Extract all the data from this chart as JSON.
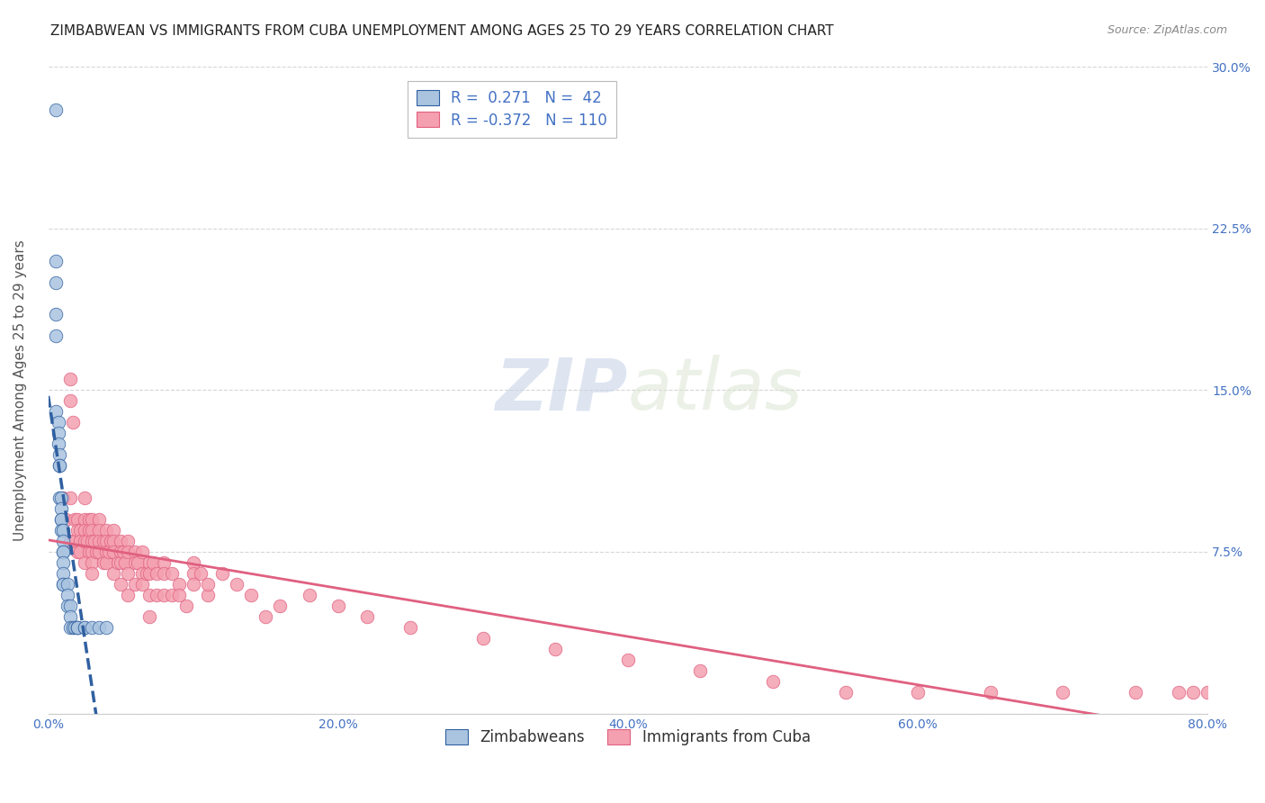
{
  "title": "ZIMBABWEAN VS IMMIGRANTS FROM CUBA UNEMPLOYMENT AMONG AGES 25 TO 29 YEARS CORRELATION CHART",
  "source": "Source: ZipAtlas.com",
  "ylabel": "Unemployment Among Ages 25 to 29 years",
  "xlim": [
    0.0,
    0.8
  ],
  "ylim": [
    0.0,
    0.3
  ],
  "yticks": [
    0.0,
    0.075,
    0.15,
    0.225,
    0.3
  ],
  "ytick_labels": [
    "",
    "7.5%",
    "15.0%",
    "22.5%",
    "30.0%"
  ],
  "xticks": [
    0.0,
    0.2,
    0.4,
    0.6,
    0.8
  ],
  "xtick_labels": [
    "0.0%",
    "20.0%",
    "40.0%",
    "60.0%",
    "80.0%"
  ],
  "background_color": "#ffffff",
  "grid_color": "#cccccc",
  "zimbabwe_color": "#aac4e0",
  "cuba_color": "#f4a0b0",
  "zimbabwe_trend_color": "#3060a0",
  "cuba_trend_color": "#e06080",
  "legend_label_zim": "Zimbabweans",
  "legend_label_cuba": "Immigrants from Cuba",
  "R_zim": 0.271,
  "N_zim": 42,
  "R_cuba": -0.372,
  "N_cuba": 110,
  "tick_color": "#4472c4",
  "axis_label_color": "#555555",
  "watermark_color": "#d0d8e8",
  "title_fontsize": 11,
  "source_fontsize": 9,
  "ylabel_fontsize": 11,
  "tick_fontsize": 10,
  "legend_fontsize": 12,
  "zim_scatter_x": [
    0.005,
    0.005,
    0.005,
    0.005,
    0.005,
    0.005,
    0.007,
    0.007,
    0.007,
    0.008,
    0.008,
    0.008,
    0.008,
    0.009,
    0.009,
    0.009,
    0.009,
    0.009,
    0.01,
    0.01,
    0.01,
    0.01,
    0.01,
    0.01,
    0.01,
    0.01,
    0.013,
    0.013,
    0.013,
    0.015,
    0.015,
    0.015,
    0.017,
    0.018,
    0.02,
    0.02,
    0.02,
    0.025,
    0.025,
    0.03,
    0.035,
    0.04
  ],
  "zim_scatter_y": [
    0.28,
    0.21,
    0.2,
    0.185,
    0.175,
    0.14,
    0.135,
    0.13,
    0.125,
    0.12,
    0.115,
    0.115,
    0.1,
    0.1,
    0.095,
    0.09,
    0.09,
    0.085,
    0.085,
    0.08,
    0.075,
    0.075,
    0.07,
    0.065,
    0.06,
    0.06,
    0.06,
    0.055,
    0.05,
    0.05,
    0.045,
    0.04,
    0.04,
    0.04,
    0.04,
    0.04,
    0.04,
    0.04,
    0.04,
    0.04,
    0.04,
    0.04
  ],
  "cuba_scatter_x": [
    0.01,
    0.012,
    0.015,
    0.015,
    0.015,
    0.015,
    0.017,
    0.018,
    0.018,
    0.02,
    0.02,
    0.02,
    0.022,
    0.022,
    0.022,
    0.025,
    0.025,
    0.025,
    0.025,
    0.025,
    0.027,
    0.028,
    0.028,
    0.028,
    0.03,
    0.03,
    0.03,
    0.03,
    0.03,
    0.03,
    0.032,
    0.033,
    0.035,
    0.035,
    0.035,
    0.035,
    0.038,
    0.038,
    0.04,
    0.04,
    0.04,
    0.04,
    0.042,
    0.043,
    0.045,
    0.045,
    0.045,
    0.045,
    0.048,
    0.05,
    0.05,
    0.05,
    0.05,
    0.052,
    0.053,
    0.055,
    0.055,
    0.055,
    0.055,
    0.06,
    0.06,
    0.06,
    0.062,
    0.065,
    0.065,
    0.065,
    0.068,
    0.07,
    0.07,
    0.07,
    0.07,
    0.072,
    0.075,
    0.075,
    0.08,
    0.08,
    0.08,
    0.085,
    0.085,
    0.09,
    0.09,
    0.095,
    0.1,
    0.1,
    0.1,
    0.105,
    0.11,
    0.11,
    0.12,
    0.13,
    0.14,
    0.15,
    0.16,
    0.18,
    0.2,
    0.22,
    0.25,
    0.3,
    0.35,
    0.4,
    0.45,
    0.5,
    0.55,
    0.6,
    0.65,
    0.7,
    0.75,
    0.78,
    0.79,
    0.8
  ],
  "cuba_scatter_y": [
    0.1,
    0.09,
    0.155,
    0.145,
    0.1,
    0.08,
    0.135,
    0.09,
    0.08,
    0.09,
    0.085,
    0.075,
    0.085,
    0.08,
    0.075,
    0.1,
    0.09,
    0.085,
    0.08,
    0.07,
    0.08,
    0.09,
    0.085,
    0.075,
    0.09,
    0.085,
    0.08,
    0.075,
    0.07,
    0.065,
    0.08,
    0.075,
    0.09,
    0.085,
    0.08,
    0.075,
    0.08,
    0.07,
    0.085,
    0.08,
    0.075,
    0.07,
    0.075,
    0.08,
    0.085,
    0.08,
    0.075,
    0.065,
    0.07,
    0.08,
    0.075,
    0.07,
    0.06,
    0.075,
    0.07,
    0.08,
    0.075,
    0.065,
    0.055,
    0.075,
    0.07,
    0.06,
    0.07,
    0.075,
    0.065,
    0.06,
    0.065,
    0.07,
    0.065,
    0.055,
    0.045,
    0.07,
    0.065,
    0.055,
    0.07,
    0.065,
    0.055,
    0.065,
    0.055,
    0.06,
    0.055,
    0.05,
    0.07,
    0.065,
    0.06,
    0.065,
    0.055,
    0.06,
    0.065,
    0.06,
    0.055,
    0.045,
    0.05,
    0.055,
    0.05,
    0.045,
    0.04,
    0.035,
    0.03,
    0.025,
    0.02,
    0.015,
    0.01,
    0.01,
    0.01,
    0.01,
    0.01,
    0.01,
    0.01,
    0.01
  ]
}
